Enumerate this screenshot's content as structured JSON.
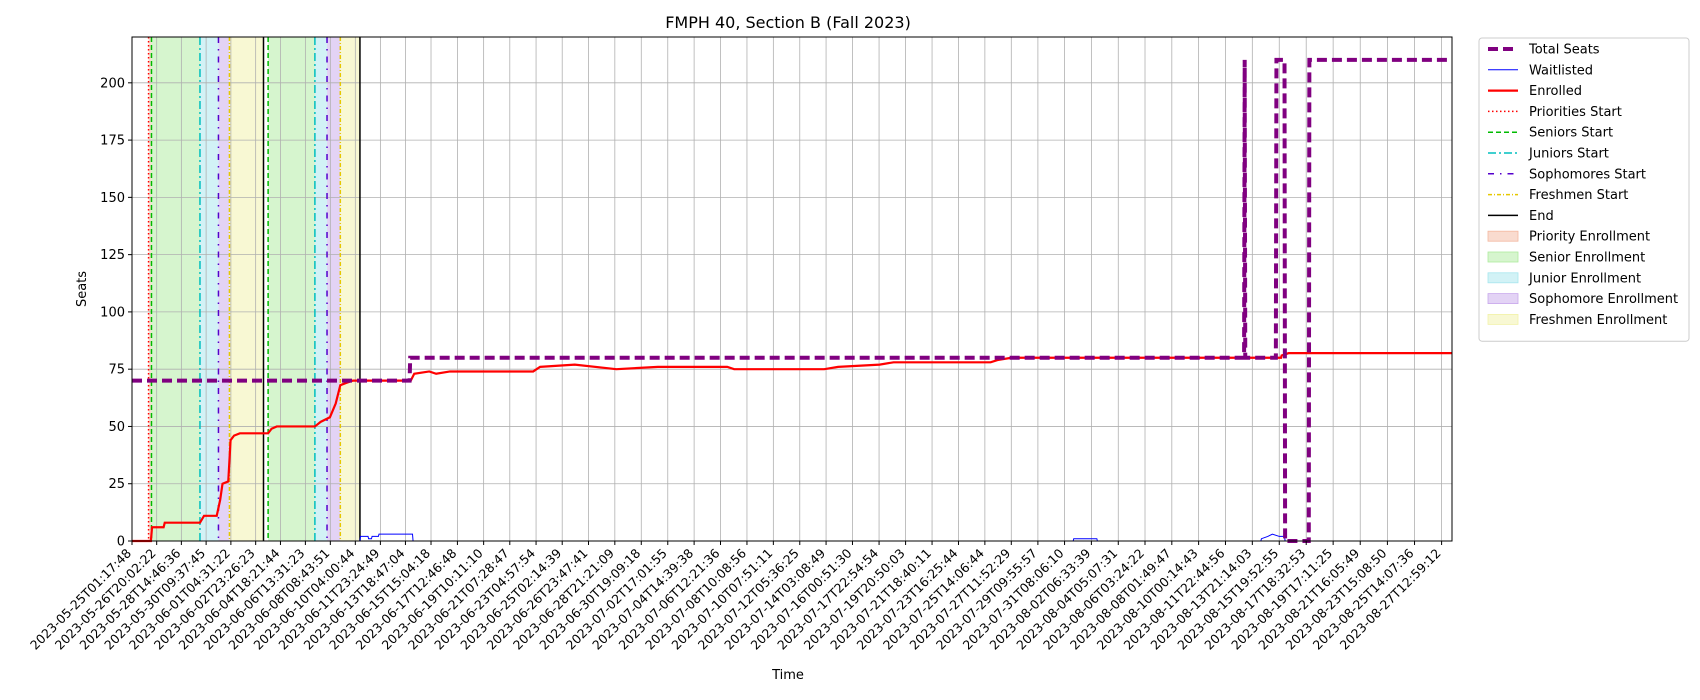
{
  "chart_data": {
    "type": "line",
    "title": "FMPH 40, Section B (Fall 2023)",
    "xlabel": "Time",
    "ylabel": "Seats",
    "x_range": [
      "2023-05-25T01:17:48",
      "2023-08-28T07:00:00"
    ],
    "ylim": [
      0,
      220
    ],
    "y_ticks": [
      0,
      25,
      50,
      75,
      100,
      125,
      150,
      175,
      200
    ],
    "grid": true,
    "legend_position": "outside-right",
    "x_ticks": [
      "2023-05-25T01:17:48",
      "2023-05-26T20:02:22",
      "2023-05-28T14:46:36",
      "2023-05-30T09:37:45",
      "2023-06-01T04:31:22",
      "2023-06-02T23:26:23",
      "2023-06-04T18:21:44",
      "2023-06-06T13:31:23",
      "2023-06-08T08:43:51",
      "2023-06-10T04:00:44",
      "2023-06-11T23:24:49",
      "2023-06-13T18:47:04",
      "2023-06-15T15:04:18",
      "2023-06-17T12:46:48",
      "2023-06-19T10:11:10",
      "2023-06-21T07:28:47",
      "2023-06-23T04:57:54",
      "2023-06-25T02:14:39",
      "2023-06-26T23:47:41",
      "2023-06-28T21:21:09",
      "2023-06-30T19:09:18",
      "2023-07-02T17:01:55",
      "2023-07-04T14:39:38",
      "2023-07-06T12:21:36",
      "2023-07-08T10:08:56",
      "2023-07-10T07:51:11",
      "2023-07-12T05:36:25",
      "2023-07-14T03:08:49",
      "2023-07-16T00:51:30",
      "2023-07-17T22:54:54",
      "2023-07-19T20:50:03",
      "2023-07-21T18:40:11",
      "2023-07-23T16:25:44",
      "2023-07-25T14:06:44",
      "2023-07-27T11:52:29",
      "2023-07-29T09:55:57",
      "2023-07-31T08:06:10",
      "2023-08-02T06:33:39",
      "2023-08-04T05:07:31",
      "2023-08-06T03:24:22",
      "2023-08-08T01:49:47",
      "2023-08-10T00:14:43",
      "2023-08-11T22:44:56",
      "2023-08-13T21:14:03",
      "2023-08-15T19:52:55",
      "2023-08-17T18:32:53",
      "2023-08-19T17:11:25",
      "2023-08-21T16:05:49",
      "2023-08-23T15:08:50",
      "2023-08-25T14:07:36",
      "2023-08-27T12:59:12"
    ],
    "legend": [
      {
        "label": "Total Seats",
        "kind": "line",
        "color": "#800080",
        "dash": "10,5",
        "width": 4
      },
      {
        "label": "Waitlisted",
        "kind": "line",
        "color": "#0000ff",
        "dash": "",
        "width": 1
      },
      {
        "label": "Enrolled",
        "kind": "line",
        "color": "#ff0000",
        "dash": "",
        "width": 2.2
      },
      {
        "label": "Priorities Start",
        "kind": "line",
        "color": "#ff0000",
        "dash": "1.5,2.5",
        "width": 1.5
      },
      {
        "label": "Seniors Start",
        "kind": "line",
        "color": "#00bb00",
        "dash": "5,3",
        "width": 1.5
      },
      {
        "label": "Juniors Start",
        "kind": "line",
        "color": "#00bfbf",
        "dash": "8,3,2,3",
        "width": 1.5
      },
      {
        "label": "Sophomores Start",
        "kind": "line",
        "color": "#5500cc",
        "dash": "6,6,1.5,6",
        "width": 1.5
      },
      {
        "label": "Freshmen Start",
        "kind": "line",
        "color": "#e6c800",
        "dash": "4,2,1,2",
        "width": 1.5
      },
      {
        "label": "End",
        "kind": "line",
        "color": "#000000",
        "dash": "",
        "width": 1.5
      },
      {
        "label": "Priority Enrollment",
        "kind": "patch",
        "color": "#f4b8a0"
      },
      {
        "label": "Senior Enrollment",
        "kind": "patch",
        "color": "#aeeb9e"
      },
      {
        "label": "Junior Enrollment",
        "kind": "patch",
        "color": "#a6e6ee"
      },
      {
        "label": "Sophomore Enrollment",
        "kind": "patch",
        "color": "#c8a8ec"
      },
      {
        "label": "Freshmen Enrollment",
        "kind": "patch",
        "color": "#f2f2a8"
      }
    ],
    "spans": [
      {
        "from": "2023-05-26T06:00:00",
        "to": "2023-05-26T11:00:00",
        "color": "#f4b8a0"
      },
      {
        "from": "2023-05-26T11:00:00",
        "to": "2023-05-29T23:00:00",
        "color": "#aeeb9e"
      },
      {
        "from": "2023-05-29T23:00:00",
        "to": "2023-05-31T07:00:00",
        "color": "#a6e6ee"
      },
      {
        "from": "2023-05-31T07:00:00",
        "to": "2023-06-01T02:00:00",
        "color": "#c8a8ec"
      },
      {
        "from": "2023-06-01T02:00:00",
        "to": "2023-06-03T13:00:00",
        "color": "#f2f2a8"
      },
      {
        "from": "2023-06-03T21:00:00",
        "to": "2023-06-07T06:00:00",
        "color": "#aeeb9e"
      },
      {
        "from": "2023-06-07T06:00:00",
        "to": "2023-06-08T03:00:00",
        "color": "#a6e6ee"
      },
      {
        "from": "2023-06-08T03:00:00",
        "to": "2023-06-09T02:00:00",
        "color": "#c8a8ec"
      },
      {
        "from": "2023-06-09T02:00:00",
        "to": "2023-06-10T12:00:00",
        "color": "#f2f2a8"
      }
    ],
    "vlines": [
      {
        "x": "2023-05-26T06:00:00",
        "style": "Priorities Start"
      },
      {
        "x": "2023-05-26T11:00:00",
        "style": "Seniors Start"
      },
      {
        "x": "2023-05-29T23:00:00",
        "style": "Juniors Start"
      },
      {
        "x": "2023-05-31T07:00:00",
        "style": "Sophomores Start"
      },
      {
        "x": "2023-06-01T02:00:00",
        "style": "Freshmen Start"
      },
      {
        "x": "2023-06-03T13:00:00",
        "style": "End"
      },
      {
        "x": "2023-06-03T21:00:00",
        "style": "Seniors Start"
      },
      {
        "x": "2023-06-07T06:00:00",
        "style": "Juniors Start"
      },
      {
        "x": "2023-06-08T03:00:00",
        "style": "Sophomores Start"
      },
      {
        "x": "2023-06-09T02:00:00",
        "style": "Freshmen Start"
      },
      {
        "x": "2023-06-10T12:00:00",
        "style": "End"
      }
    ],
    "series": [
      {
        "name": "Total Seats",
        "points": [
          [
            "2023-05-25T01:17:48",
            70
          ],
          [
            "2023-06-14T02:00:00",
            70
          ],
          [
            "2023-06-14T03:00:00",
            80
          ],
          [
            "2023-08-13T07:00:00",
            80
          ],
          [
            "2023-08-13T08:00:00",
            210
          ],
          [
            "2023-08-13T09:00:00",
            80
          ],
          [
            "2023-08-15T14:00:00",
            80
          ],
          [
            "2023-08-15T15:00:00",
            210
          ],
          [
            "2023-08-16T05:00:00",
            210
          ],
          [
            "2023-08-16T06:00:00",
            0
          ],
          [
            "2023-08-17T23:00:00",
            0
          ],
          [
            "2023-08-18T00:00:00",
            210
          ],
          [
            "2023-08-28T07:00:00",
            210
          ]
        ]
      },
      {
        "name": "Waitlisted",
        "points": [
          [
            "2023-05-25T01:17:48",
            0
          ],
          [
            "2023-06-10T12:00:00",
            0
          ],
          [
            "2023-06-10T13:00:00",
            2
          ],
          [
            "2023-06-11T02:00:00",
            2
          ],
          [
            "2023-06-11T03:00:00",
            1
          ],
          [
            "2023-06-11T08:00:00",
            1
          ],
          [
            "2023-06-11T09:00:00",
            2
          ],
          [
            "2023-06-11T20:00:00",
            2
          ],
          [
            "2023-06-11T21:00:00",
            3
          ],
          [
            "2023-06-14T07:00:00",
            3
          ],
          [
            "2023-06-14T08:00:00",
            0
          ],
          [
            "2023-07-31T23:00:00",
            0
          ],
          [
            "2023-08-01T00:00:00",
            1
          ],
          [
            "2023-08-02T16:00:00",
            1
          ],
          [
            "2023-08-02T17:00:00",
            0
          ],
          [
            "2023-08-14T12:00:00",
            0
          ],
          [
            "2023-08-14T13:00:00",
            1
          ],
          [
            "2023-08-15T00:00:00",
            2
          ],
          [
            "2023-08-15T08:00:00",
            3
          ],
          [
            "2023-08-15T20:00:00",
            2
          ],
          [
            "2023-08-16T05:00:00",
            2
          ],
          [
            "2023-08-16T06:00:00",
            0
          ],
          [
            "2023-08-28T07:00:00",
            0
          ]
        ]
      },
      {
        "name": "Enrolled",
        "points": [
          [
            "2023-05-25T01:17:48",
            0
          ],
          [
            "2023-05-26T10:00:00",
            0
          ],
          [
            "2023-05-26T12:00:00",
            6
          ],
          [
            "2023-05-27T08:00:00",
            6
          ],
          [
            "2023-05-27T10:00:00",
            8
          ],
          [
            "2023-05-29T23:00:00",
            8
          ],
          [
            "2023-05-30T06:00:00",
            11
          ],
          [
            "2023-05-31T04:00:00",
            11
          ],
          [
            "2023-05-31T10:00:00",
            18
          ],
          [
            "2023-05-31T14:00:00",
            25
          ],
          [
            "2023-06-01T00:00:00",
            26
          ],
          [
            "2023-06-01T04:00:00",
            44
          ],
          [
            "2023-06-01T10:00:00",
            46
          ],
          [
            "2023-06-01T20:00:00",
            47
          ],
          [
            "2023-06-03T21:00:00",
            47
          ],
          [
            "2023-06-04T03:00:00",
            49
          ],
          [
            "2023-06-04T12:00:00",
            50
          ],
          [
            "2023-06-07T06:00:00",
            50
          ],
          [
            "2023-06-07T16:00:00",
            52
          ],
          [
            "2023-06-08T08:00:00",
            54
          ],
          [
            "2023-06-08T18:00:00",
            60
          ],
          [
            "2023-06-09T02:00:00",
            68
          ],
          [
            "2023-06-09T12:00:00",
            69
          ],
          [
            "2023-06-10T00:00:00",
            70
          ],
          [
            "2023-06-14T04:00:00",
            70
          ],
          [
            "2023-06-14T10:00:00",
            73
          ],
          [
            "2023-06-15T12:00:00",
            74
          ],
          [
            "2023-06-16T00:00:00",
            73
          ],
          [
            "2023-06-17T00:00:00",
            74
          ],
          [
            "2023-06-23T00:00:00",
            74
          ],
          [
            "2023-06-23T12:00:00",
            76
          ],
          [
            "2023-06-26T00:00:00",
            77
          ],
          [
            "2023-06-29T00:00:00",
            75
          ],
          [
            "2023-07-02T00:00:00",
            76
          ],
          [
            "2023-07-07T00:00:00",
            76
          ],
          [
            "2023-07-07T12:00:00",
            75
          ],
          [
            "2023-07-14T00:00:00",
            75
          ],
          [
            "2023-07-15T00:00:00",
            76
          ],
          [
            "2023-07-18T00:00:00",
            77
          ],
          [
            "2023-07-19T00:00:00",
            78
          ],
          [
            "2023-07-26T00:00:00",
            78
          ],
          [
            "2023-07-26T12:00:00",
            79
          ],
          [
            "2023-07-27T12:00:00",
            80
          ],
          [
            "2023-08-15T23:00:00",
            80
          ],
          [
            "2023-08-16T00:00:00",
            81
          ],
          [
            "2023-08-16T12:00:00",
            82
          ],
          [
            "2023-08-28T07:00:00",
            82
          ]
        ]
      }
    ]
  }
}
